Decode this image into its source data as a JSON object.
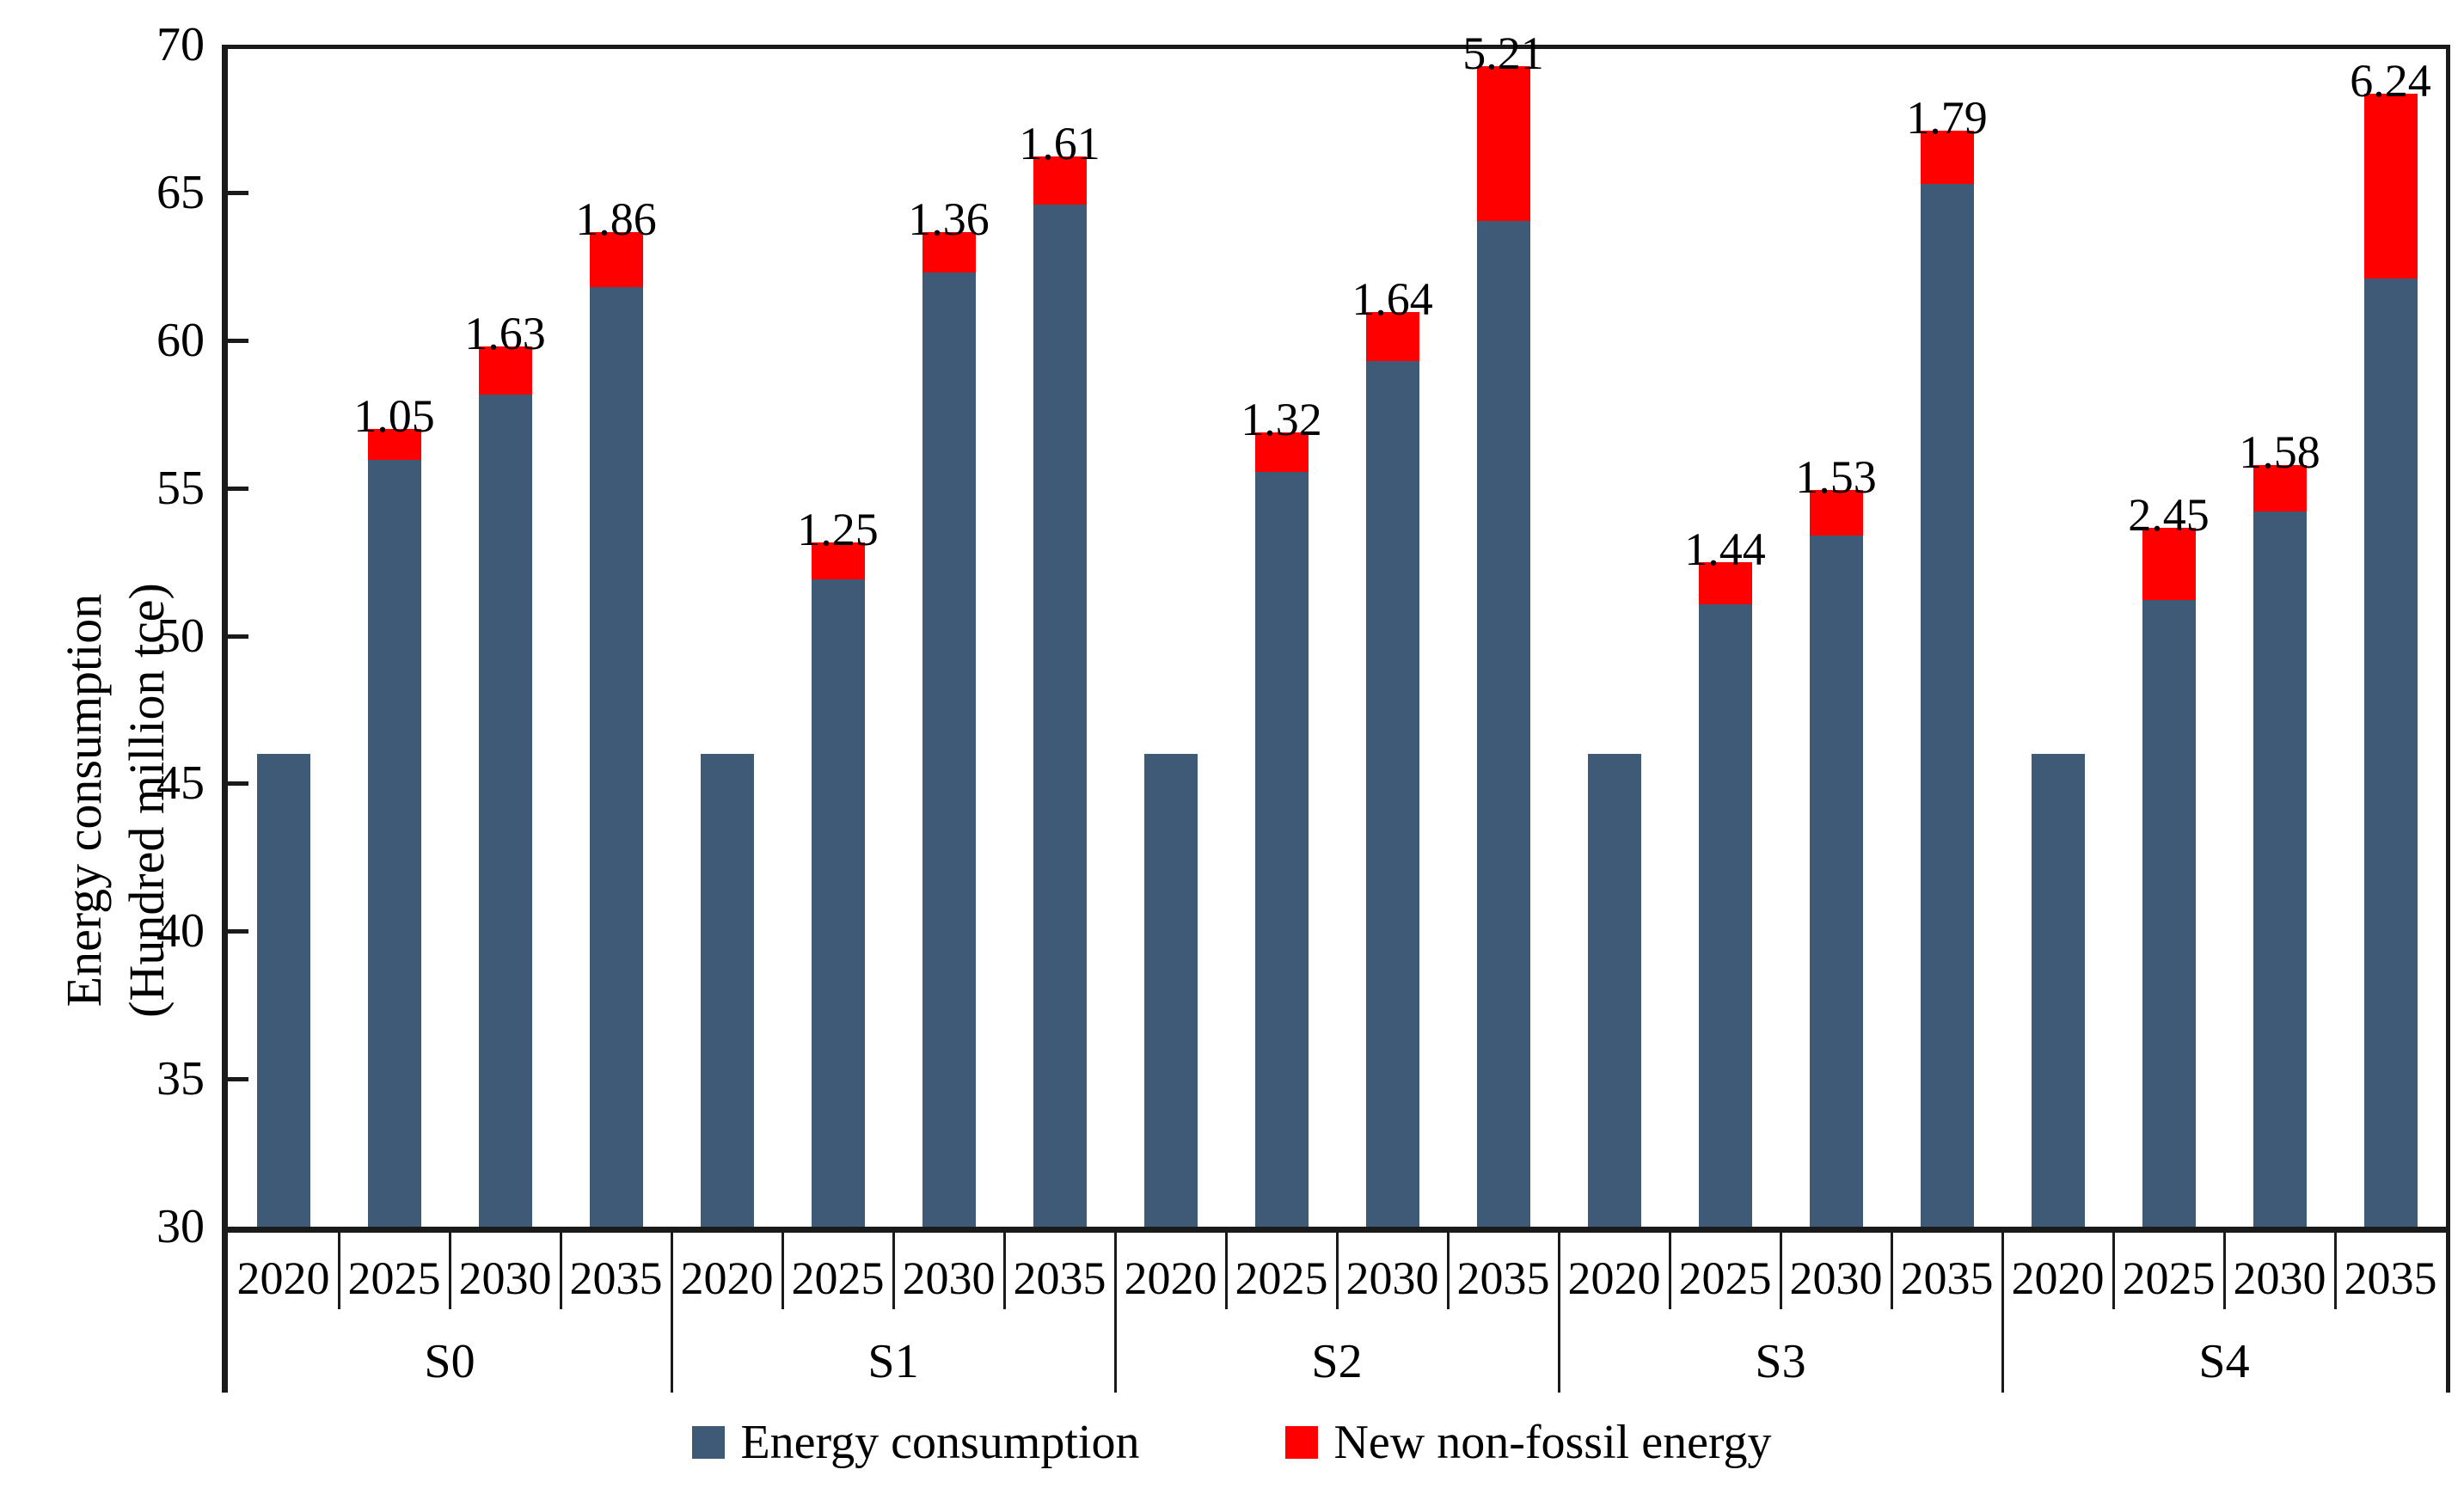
{
  "chart_data": {
    "type": "bar",
    "stacked": true,
    "title": "",
    "ylabel_line1": "Energy consumption",
    "ylabel_line2": "(Hundred million tce)",
    "ylim": [
      30,
      70
    ],
    "yticks": [
      "30",
      "35",
      "40",
      "45",
      "50",
      "55",
      "60",
      "65",
      "70"
    ],
    "grid": false,
    "legend_position": "bottom",
    "groups": [
      "S0",
      "S1",
      "S2",
      "S3",
      "S4"
    ],
    "years": [
      "2020",
      "2025",
      "2030",
      "2035"
    ],
    "series": [
      {
        "name": "Energy consumption",
        "color": "#3e5a76",
        "values": [
          [
            46.0,
            55.95,
            58.15,
            61.8
          ],
          [
            46.0,
            51.9,
            62.3,
            64.6
          ],
          [
            46.0,
            55.55,
            59.3,
            64.05
          ],
          [
            46.0,
            51.05,
            53.4,
            65.3
          ],
          [
            46.0,
            51.2,
            54.2,
            62.1
          ]
        ]
      },
      {
        "name": "New non-fossil energy",
        "color": "#ff0000",
        "values": [
          [
            0,
            1.05,
            1.63,
            1.86
          ],
          [
            0,
            1.25,
            1.36,
            1.61
          ],
          [
            0,
            1.32,
            1.64,
            5.21
          ],
          [
            0,
            1.44,
            1.53,
            1.79
          ],
          [
            0,
            2.45,
            1.58,
            6.24
          ]
        ],
        "data_labels": [
          [
            "",
            "1.05",
            "1.63",
            "1.86"
          ],
          [
            "",
            "1.25",
            "1.36",
            "1.61"
          ],
          [
            "",
            "1.32",
            "1.64",
            "5.21"
          ],
          [
            "",
            "1.44",
            "1.53",
            "1.79"
          ],
          [
            "",
            "2.45",
            "1.58",
            "6.24"
          ]
        ]
      }
    ],
    "legend": [
      "Energy consumption",
      "New non-fossil energy"
    ]
  }
}
